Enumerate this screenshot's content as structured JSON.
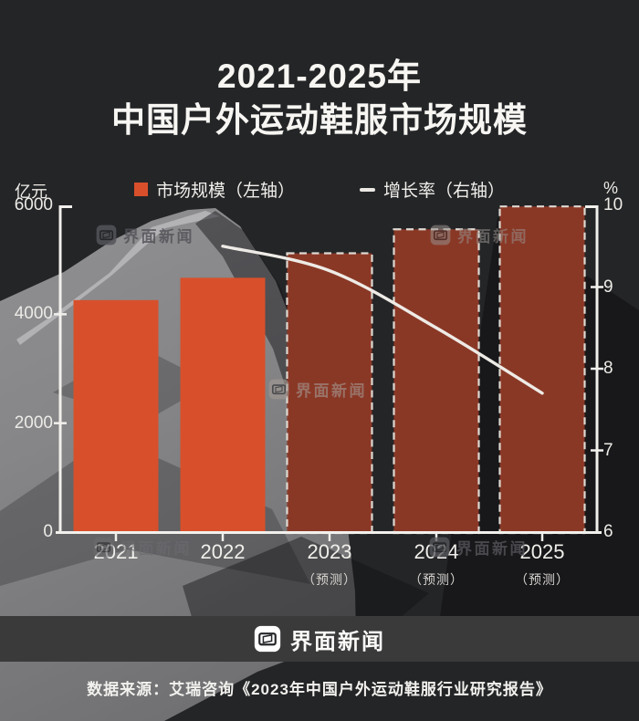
{
  "title": {
    "line1": "2021-2025年",
    "line2": "中国户外运动鞋服市场规模"
  },
  "legend": {
    "bar_label": "市场规模（左轴）",
    "line_label": "增长率（右轴）"
  },
  "axes": {
    "left_unit": "亿元",
    "right_unit": "%"
  },
  "chart_data": {
    "type": "combo-bar-line",
    "title": "2021-2025年中国户外运动鞋服市场规模",
    "categories": [
      "2021",
      "2022",
      "2023",
      "2024",
      "2025"
    ],
    "forecast_label": "（预测）",
    "forecast_flags": [
      false,
      false,
      true,
      true,
      true
    ],
    "series": [
      {
        "name": "市场规模（左轴）",
        "type": "bar",
        "axis": "left",
        "unit": "亿元",
        "values": [
          4260,
          4670,
          5120,
          5560,
          5980
        ]
      },
      {
        "name": "增长率（右轴）",
        "type": "line",
        "axis": "right",
        "unit": "%",
        "x_categories": [
          "2022",
          "2023",
          "2024",
          "2025"
        ],
        "values": [
          9.5,
          9.2,
          8.5,
          7.7
        ]
      }
    ],
    "left_ylim": [
      0,
      6000
    ],
    "right_ylim": [
      6,
      10
    ],
    "left_tick_values": [
      0,
      2000,
      4000,
      6000
    ],
    "right_tick_values": [
      6,
      7,
      8,
      9,
      10
    ],
    "grid": false,
    "legend_position": "top"
  },
  "watermark": {
    "text": "界面新闻"
  },
  "footer": {
    "brand": "界面新闻",
    "source": "数据来源：艾瑞咨询《2023年中国户外运动鞋服行业研究报告》"
  },
  "colors": {
    "background": "#242527",
    "bar": "#d7502b",
    "bar_forecast": "#8a3826",
    "bar_forecast_stroke": "#ded9d2",
    "line": "#eeebe6",
    "axis": "#f2f0ec",
    "brand_bar_bg": "#3a3a3b"
  }
}
